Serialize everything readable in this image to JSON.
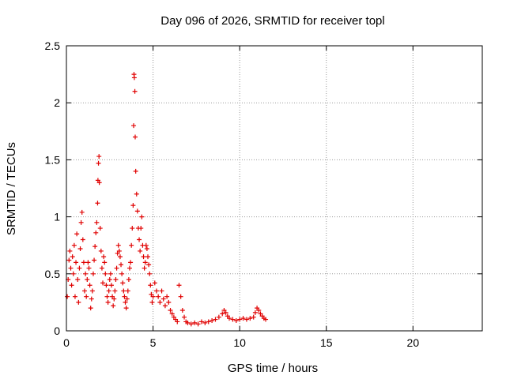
{
  "chart_data": {
    "type": "scatter",
    "title": "Day 096 of 2026, SRMTID for receiver topl",
    "xlabel": "GPS time / hours",
    "ylabel": "SRMTID / TECUs",
    "xlim": [
      0,
      24
    ],
    "ylim": [
      0,
      2.5
    ],
    "x_ticks": [
      0,
      5,
      10,
      15,
      20
    ],
    "x_tick_labels": [
      "0",
      "5",
      "10",
      "15",
      "20"
    ],
    "y_ticks": [
      0,
      0.5,
      1,
      1.5,
      2,
      2.5
    ],
    "y_tick_labels": [
      "0",
      "0.5",
      "1",
      "1.5",
      "2",
      "2.5"
    ],
    "grid": true,
    "marker": "+",
    "color": "#e00000",
    "series": [
      {
        "name": "SRMTID",
        "points": [
          [
            0.05,
            0.3
          ],
          [
            0.1,
            0.45
          ],
          [
            0.15,
            0.62
          ],
          [
            0.2,
            0.7
          ],
          [
            0.25,
            0.55
          ],
          [
            0.3,
            0.4
          ],
          [
            0.35,
            0.65
          ],
          [
            0.4,
            0.5
          ],
          [
            0.45,
            0.75
          ],
          [
            0.5,
            0.3
          ],
          [
            0.55,
            0.6
          ],
          [
            0.6,
            0.85
          ],
          [
            0.65,
            0.45
          ],
          [
            0.7,
            0.25
          ],
          [
            0.75,
            0.55
          ],
          [
            0.8,
            0.72
          ],
          [
            0.85,
            0.95
          ],
          [
            0.9,
            1.04
          ],
          [
            0.95,
            0.8
          ],
          [
            1.0,
            0.6
          ],
          [
            1.05,
            0.35
          ],
          [
            1.1,
            0.5
          ],
          [
            1.15,
            0.3
          ],
          [
            1.2,
            0.45
          ],
          [
            1.25,
            0.6
          ],
          [
            1.3,
            0.55
          ],
          [
            1.35,
            0.4
          ],
          [
            1.4,
            0.2
          ],
          [
            1.45,
            0.28
          ],
          [
            1.5,
            0.35
          ],
          [
            1.55,
            0.5
          ],
          [
            1.6,
            0.62
          ],
          [
            1.65,
            0.74
          ],
          [
            1.7,
            0.86
          ],
          [
            1.75,
            0.95
          ],
          [
            1.8,
            1.12
          ],
          [
            1.82,
            1.32
          ],
          [
            1.85,
            1.47
          ],
          [
            1.88,
            1.53
          ],
          [
            1.9,
            1.3
          ],
          [
            1.95,
            0.9
          ],
          [
            2.0,
            0.7
          ],
          [
            2.05,
            0.55
          ],
          [
            2.1,
            0.42
          ],
          [
            2.15,
            0.65
          ],
          [
            2.2,
            0.6
          ],
          [
            2.25,
            0.5
          ],
          [
            2.3,
            0.4
          ],
          [
            2.35,
            0.3
          ],
          [
            2.4,
            0.25
          ],
          [
            2.45,
            0.35
          ],
          [
            2.5,
            0.45
          ],
          [
            2.55,
            0.5
          ],
          [
            2.6,
            0.4
          ],
          [
            2.65,
            0.3
          ],
          [
            2.7,
            0.22
          ],
          [
            2.75,
            0.28
          ],
          [
            2.8,
            0.35
          ],
          [
            2.85,
            0.45
          ],
          [
            2.9,
            0.55
          ],
          [
            2.95,
            0.68
          ],
          [
            3.0,
            0.75
          ],
          [
            3.05,
            0.7
          ],
          [
            3.1,
            0.65
          ],
          [
            3.15,
            0.58
          ],
          [
            3.2,
            0.5
          ],
          [
            3.25,
            0.42
          ],
          [
            3.3,
            0.35
          ],
          [
            3.35,
            0.3
          ],
          [
            3.4,
            0.25
          ],
          [
            3.45,
            0.2
          ],
          [
            3.5,
            0.28
          ],
          [
            3.55,
            0.35
          ],
          [
            3.6,
            0.45
          ],
          [
            3.65,
            0.55
          ],
          [
            3.7,
            0.6
          ],
          [
            3.75,
            0.75
          ],
          [
            3.8,
            0.9
          ],
          [
            3.85,
            1.1
          ],
          [
            3.88,
            1.8
          ],
          [
            3.9,
            2.25
          ],
          [
            3.92,
            2.22
          ],
          [
            3.95,
            2.1
          ],
          [
            3.97,
            1.7
          ],
          [
            4.0,
            1.4
          ],
          [
            4.05,
            1.2
          ],
          [
            4.1,
            1.05
          ],
          [
            4.15,
            0.9
          ],
          [
            4.2,
            0.8
          ],
          [
            4.25,
            0.7
          ],
          [
            4.3,
            0.9
          ],
          [
            4.35,
            1.0
          ],
          [
            4.4,
            0.75
          ],
          [
            4.45,
            0.65
          ],
          [
            4.5,
            0.55
          ],
          [
            4.55,
            0.6
          ],
          [
            4.6,
            0.75
          ],
          [
            4.65,
            0.72
          ],
          [
            4.7,
            0.65
          ],
          [
            4.75,
            0.58
          ],
          [
            4.8,
            0.5
          ],
          [
            4.85,
            0.4
          ],
          [
            4.9,
            0.32
          ],
          [
            4.95,
            0.25
          ],
          [
            5.0,
            0.3
          ],
          [
            5.1,
            0.42
          ],
          [
            5.2,
            0.35
          ],
          [
            5.3,
            0.3
          ],
          [
            5.4,
            0.25
          ],
          [
            5.5,
            0.35
          ],
          [
            5.6,
            0.28
          ],
          [
            5.7,
            0.22
          ],
          [
            5.8,
            0.3
          ],
          [
            5.9,
            0.25
          ],
          [
            6.0,
            0.18
          ],
          [
            6.1,
            0.15
          ],
          [
            6.2,
            0.12
          ],
          [
            6.3,
            0.1
          ],
          [
            6.4,
            0.08
          ],
          [
            6.5,
            0.4
          ],
          [
            6.6,
            0.3
          ],
          [
            6.7,
            0.18
          ],
          [
            6.8,
            0.12
          ],
          [
            6.9,
            0.08
          ],
          [
            7.0,
            0.07
          ],
          [
            7.2,
            0.06
          ],
          [
            7.4,
            0.07
          ],
          [
            7.6,
            0.06
          ],
          [
            7.8,
            0.08
          ],
          [
            8.0,
            0.07
          ],
          [
            8.2,
            0.08
          ],
          [
            8.4,
            0.09
          ],
          [
            8.6,
            0.1
          ],
          [
            8.8,
            0.12
          ],
          [
            9.0,
            0.15
          ],
          [
            9.1,
            0.18
          ],
          [
            9.2,
            0.16
          ],
          [
            9.3,
            0.13
          ],
          [
            9.4,
            0.11
          ],
          [
            9.6,
            0.1
          ],
          [
            9.8,
            0.09
          ],
          [
            10.0,
            0.1
          ],
          [
            10.2,
            0.11
          ],
          [
            10.4,
            0.1
          ],
          [
            10.6,
            0.11
          ],
          [
            10.8,
            0.12
          ],
          [
            10.9,
            0.16
          ],
          [
            11.0,
            0.2
          ],
          [
            11.1,
            0.18
          ],
          [
            11.2,
            0.15
          ],
          [
            11.3,
            0.13
          ],
          [
            11.4,
            0.11
          ],
          [
            11.5,
            0.1
          ]
        ]
      }
    ]
  }
}
